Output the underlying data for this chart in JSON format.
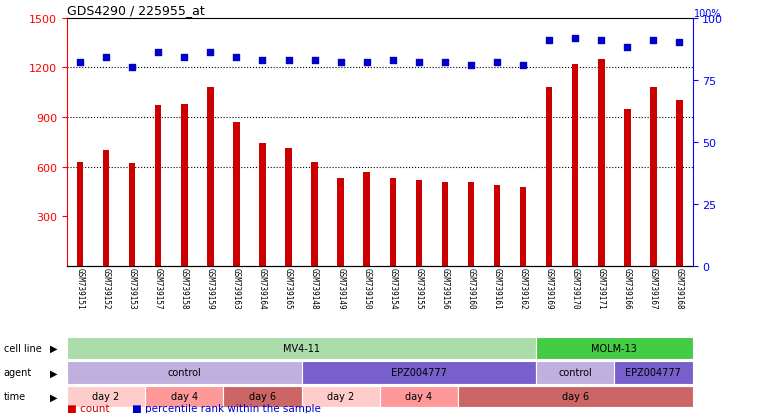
{
  "title": "GDS4290 / 225955_at",
  "samples": [
    "GSM739151",
    "GSM739152",
    "GSM739153",
    "GSM739157",
    "GSM739158",
    "GSM739159",
    "GSM739163",
    "GSM739164",
    "GSM739165",
    "GSM739148",
    "GSM739149",
    "GSM739150",
    "GSM739154",
    "GSM739155",
    "GSM739156",
    "GSM739160",
    "GSM739161",
    "GSM739162",
    "GSM739169",
    "GSM739170",
    "GSM739171",
    "GSM739166",
    "GSM739167",
    "GSM739168"
  ],
  "counts": [
    630,
    700,
    620,
    970,
    980,
    1080,
    870,
    740,
    710,
    630,
    530,
    570,
    530,
    520,
    510,
    510,
    490,
    480,
    1080,
    1220,
    1250,
    950,
    1080,
    1000
  ],
  "percentile_ranks": [
    82,
    84,
    80,
    86,
    84,
    86,
    84,
    83,
    83,
    83,
    82,
    82,
    83,
    82,
    82,
    81,
    82,
    81,
    91,
    92,
    91,
    88,
    91,
    90
  ],
  "bar_color": "#cc0000",
  "dot_color": "#0000cc",
  "ylim_left": [
    0,
    1500
  ],
  "ylim_right": [
    0,
    100
  ],
  "yticks_left": [
    300,
    600,
    900,
    1200,
    1500
  ],
  "yticks_right": [
    0,
    25,
    50,
    75,
    100
  ],
  "grid_values": [
    600,
    900,
    1200
  ],
  "cell_line_groups": [
    {
      "label": "MV4-11",
      "start": 0,
      "end": 18,
      "color": "#aaddaa"
    },
    {
      "label": "MOLM-13",
      "start": 18,
      "end": 24,
      "color": "#44cc44"
    }
  ],
  "agent_groups": [
    {
      "label": "control",
      "start": 0,
      "end": 9,
      "color": "#c0b0e0"
    },
    {
      "label": "EPZ004777",
      "start": 9,
      "end": 18,
      "color": "#7860cc"
    },
    {
      "label": "control",
      "start": 18,
      "end": 21,
      "color": "#c0b0e0"
    },
    {
      "label": "EPZ004777",
      "start": 21,
      "end": 24,
      "color": "#7860cc"
    }
  ],
  "time_groups": [
    {
      "label": "day 2",
      "start": 0,
      "end": 3,
      "color": "#ffcccc"
    },
    {
      "label": "day 4",
      "start": 3,
      "end": 6,
      "color": "#ff9999"
    },
    {
      "label": "day 6",
      "start": 6,
      "end": 9,
      "color": "#cc6666"
    },
    {
      "label": "day 2",
      "start": 9,
      "end": 12,
      "color": "#ffcccc"
    },
    {
      "label": "day 4",
      "start": 12,
      "end": 15,
      "color": "#ff9999"
    },
    {
      "label": "day 6",
      "start": 15,
      "end": 24,
      "color": "#cc6666"
    }
  ],
  "legend_count_color": "#cc0000",
  "legend_pct_color": "#0000cc"
}
